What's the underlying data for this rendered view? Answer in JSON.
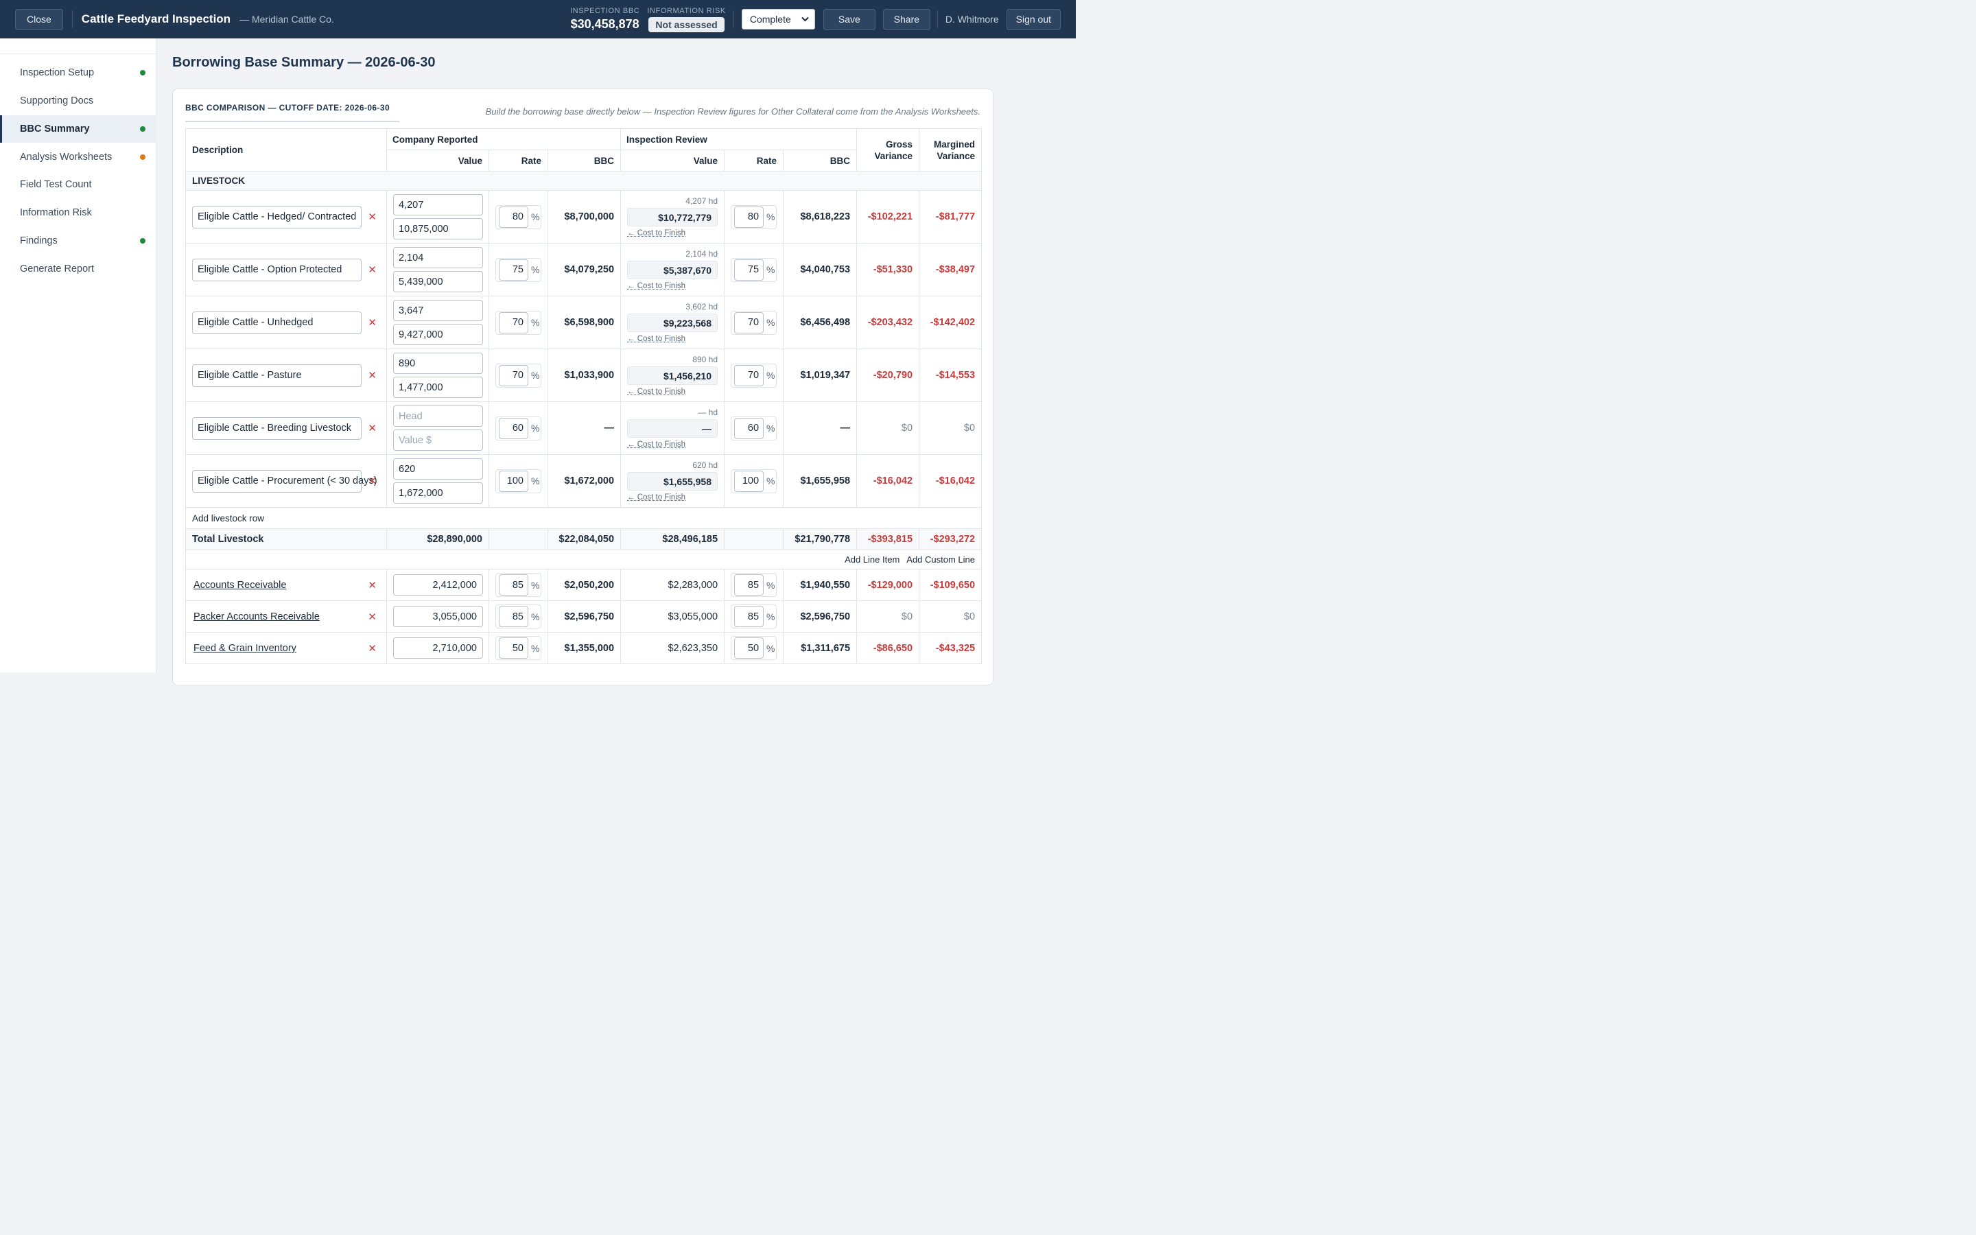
{
  "header": {
    "close_label": "Close",
    "title": "Cattle Feedyard Inspection",
    "subtitle": "— Meridian Cattle Co.",
    "bbc_label": "INSPECTION BBC",
    "bbc_value": "$30,458,878",
    "risk_label": "INFORMATION RISK",
    "risk_value": "Not assessed",
    "status_value": "Complete",
    "save_label": "Save",
    "share_label": "Share",
    "user": "D. Whitmore",
    "signout_label": "Sign out"
  },
  "sidebar": {
    "items": [
      {
        "label": "Inspection Setup",
        "dot": "#1e8a3c"
      },
      {
        "label": "Supporting Docs",
        "dot": ""
      },
      {
        "label": "BBC Summary",
        "dot": "#1e8a3c"
      },
      {
        "label": "Analysis Worksheets",
        "dot": "#e07b10"
      },
      {
        "label": "Field Test Count",
        "dot": ""
      },
      {
        "label": "Information Risk",
        "dot": ""
      },
      {
        "label": "Findings",
        "dot": "#1e8a3c"
      },
      {
        "label": "Generate Report",
        "dot": ""
      }
    ]
  },
  "page": {
    "title": "Borrowing Base Summary — 2026-06-30",
    "card_heading": "BBC COMPARISON — CUTOFF DATE: 2026-06-30",
    "card_note": "Build the borrowing base directly below — Inspection Review figures for Other Collateral come from the Analysis Worksheets."
  },
  "table": {
    "headers": {
      "description": "Description",
      "company_reported": "Company Reported",
      "inspection_review": "Inspection Review",
      "value": "Value",
      "rate": "Rate",
      "bbc": "BBC",
      "gross_variance": "Gross Variance",
      "margined_variance": "Margined Variance"
    },
    "livestock_label": "LIVESTOCK",
    "head_placeholder": "Head",
    "value_placeholder": "Value $",
    "cost_to_finish": "← Cost to Finish",
    "livestock": [
      {
        "desc": "Eligible Cattle - Hedged/ Contracted",
        "head": "4,207",
        "value": "10,875,000",
        "rate": "80",
        "bbc": "$8,700,000",
        "ir_hd": "4,207 hd",
        "ir_value": "$10,772,779",
        "ir_rate": "80",
        "ir_bbc": "$8,618,223",
        "gross": "-$102,221",
        "margined": "-$81,777"
      },
      {
        "desc": "Eligible Cattle - Option Protected",
        "head": "2,104",
        "value": "5,439,000",
        "rate": "75",
        "bbc": "$4,079,250",
        "ir_hd": "2,104 hd",
        "ir_value": "$5,387,670",
        "ir_rate": "75",
        "ir_bbc": "$4,040,753",
        "gross": "-$51,330",
        "margined": "-$38,497"
      },
      {
        "desc": "Eligible Cattle - Unhedged",
        "head": "3,647",
        "value": "9,427,000",
        "rate": "70",
        "bbc": "$6,598,900",
        "ir_hd": "3,602 hd",
        "ir_value": "$9,223,568",
        "ir_rate": "70",
        "ir_bbc": "$6,456,498",
        "gross": "-$203,432",
        "margined": "-$142,402"
      },
      {
        "desc": "Eligible Cattle - Pasture",
        "head": "890",
        "value": "1,477,000",
        "rate": "70",
        "bbc": "$1,033,900",
        "ir_hd": "890 hd",
        "ir_value": "$1,456,210",
        "ir_rate": "70",
        "ir_bbc": "$1,019,347",
        "gross": "-$20,790",
        "margined": "-$14,553"
      },
      {
        "desc": "Eligible Cattle - Breeding Livestock",
        "head": "",
        "value": "",
        "rate": "60",
        "bbc": "—",
        "ir_hd": "— hd",
        "ir_value": "—",
        "ir_rate": "60",
        "ir_bbc": "—",
        "gross": "$0",
        "margined": "$0"
      },
      {
        "desc": "Eligible Cattle - Procurement (< 30 days)",
        "head": "620",
        "value": "1,672,000",
        "rate": "100",
        "bbc": "$1,672,000",
        "ir_hd": "620 hd",
        "ir_value": "$1,655,958",
        "ir_rate": "100",
        "ir_bbc": "$1,655,958",
        "gross": "-$16,042",
        "margined": "-$16,042"
      }
    ],
    "add_livestock_label": "Add livestock row",
    "total": {
      "label": "Total Livestock",
      "value": "$28,890,000",
      "bbc": "$22,084,050",
      "ir_value": "$28,496,185",
      "ir_bbc": "$21,790,778",
      "gross": "-$393,815",
      "margined": "-$293,272"
    },
    "add_line_item": "Add Line Item",
    "add_custom_line": "Add Custom Line",
    "other": [
      {
        "desc": "Accounts Receivable",
        "value": "2,412,000",
        "rate": "85",
        "bbc": "$2,050,200",
        "ir_value": "$2,283,000",
        "ir_rate": "85",
        "ir_bbc": "$1,940,550",
        "gross": "-$129,000",
        "margined": "-$109,650"
      },
      {
        "desc": "Packer Accounts Receivable",
        "value": "3,055,000",
        "rate": "85",
        "bbc": "$2,596,750",
        "ir_value": "$3,055,000",
        "ir_rate": "85",
        "ir_bbc": "$2,596,750",
        "gross": "$0",
        "margined": "$0"
      },
      {
        "desc": "Feed & Grain Inventory",
        "value": "2,710,000",
        "rate": "50",
        "bbc": "$1,355,000",
        "ir_value": "$2,623,350",
        "ir_rate": "50",
        "ir_bbc": "$1,311,675",
        "gross": "-$86,650",
        "margined": "-$43,325"
      }
    ]
  }
}
